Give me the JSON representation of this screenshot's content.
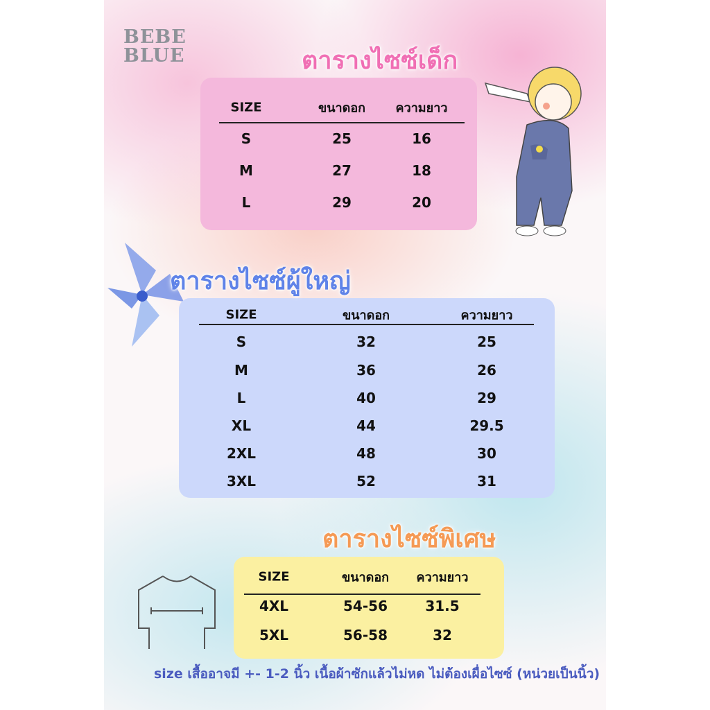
{
  "brand": {
    "logo_line1": "BEBE",
    "logo_line2": "BLUE"
  },
  "colors": {
    "kids_box": "#f4b8dc",
    "adult_box": "#ccd8fb",
    "special_box": "#fbf0a1",
    "kids_title": "#f06fb4",
    "adult_title": "#5f83e8",
    "special_title": "#f59a55"
  },
  "tables": [
    {
      "title": "ตารางไซซ์เด็ก",
      "headers": [
        "SIZE",
        "ขนาดอก",
        "ความยาว"
      ],
      "rows": [
        [
          "S",
          "25",
          "16"
        ],
        [
          "M",
          "27",
          "18"
        ],
        [
          "L",
          "29",
          "20"
        ]
      ]
    },
    {
      "title": "ตารางไซซ์ผู้ใหญ่",
      "headers": [
        "SIZE",
        "ขนาดอก",
        "ความยาว"
      ],
      "rows": [
        [
          "S",
          "32",
          "25"
        ],
        [
          "M",
          "36",
          "26"
        ],
        [
          "L",
          "40",
          "29"
        ],
        [
          "XL",
          "44",
          "29.5"
        ],
        [
          "2XL",
          "48",
          "30"
        ],
        [
          "3XL",
          "52",
          "31"
        ]
      ]
    },
    {
      "title": "ตารางไซซ์พิเศษ",
      "headers": [
        "SIZE",
        "ขนาดอก",
        "ความยาว"
      ],
      "rows": [
        [
          "4XL",
          "54-56",
          "31.5"
        ],
        [
          "5XL",
          "56-58",
          "32"
        ]
      ]
    }
  ],
  "footnote": "size เสื้ออาจมี +- 1-2 นิ้ว เนื้อผ้าซักแล้วไม่หด ไม่ต้องเผื่อไซซ์ (หน่วยเป็นนิ้ว)",
  "illustrations": [
    "child-overalls-illustration",
    "blue-flower-illustration",
    "tshirt-chest-measure-icon"
  ]
}
